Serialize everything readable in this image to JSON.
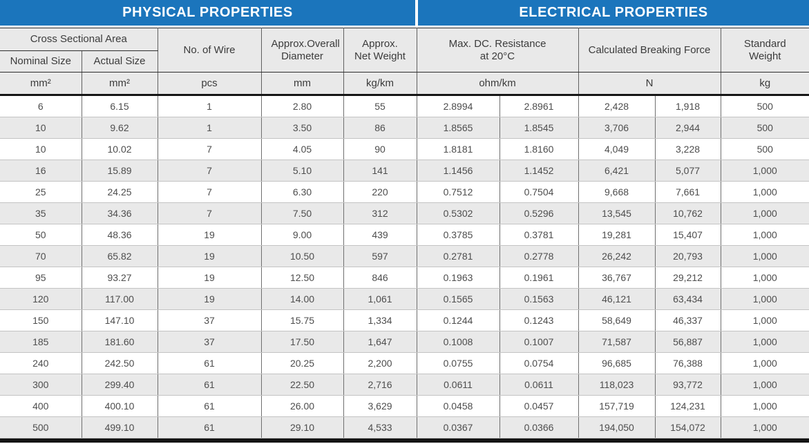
{
  "banners": {
    "physical": "PHYSICAL PROPERTIES",
    "electrical": "ELECTRICAL PROPERTIES"
  },
  "colors": {
    "banner_blue": "#1b75bc",
    "row_alt_gray": "#e9e9e9",
    "header_gray": "#e9e9e9",
    "bottom_bar": "#141414"
  },
  "header": {
    "cross_sectional_area": "Cross Sectional Area",
    "nominal_size": "Nominal Size",
    "actual_size": "Actual Size",
    "no_of_wire": "No. of Wire",
    "approx_overall_diameter": "Approx.Overall Diameter",
    "approx_net_weight": "Approx. Net Weight",
    "max_dc_resistance_line1": "Max. DC. Resistance",
    "max_dc_resistance_line2": "at 20°C",
    "calculated_breaking_force": "Calculated Breaking Force",
    "standard_weight": "Standard Weight"
  },
  "units": {
    "nominal_size": "mm²",
    "actual_size": "mm²",
    "no_of_wire": "pcs",
    "diameter": "mm",
    "net_weight": "kg/km",
    "resistance": "ohm/km",
    "breaking_force": "N",
    "standard_weight": "kg"
  },
  "rows": [
    [
      "6",
      "6.15",
      "1",
      "2.80",
      "55",
      "2.8994",
      "2.8961",
      "2,428",
      "1,918",
      "500"
    ],
    [
      "10",
      "9.62",
      "1",
      "3.50",
      "86",
      "1.8565",
      "1.8545",
      "3,706",
      "2,944",
      "500"
    ],
    [
      "10",
      "10.02",
      "7",
      "4.05",
      "90",
      "1.8181",
      "1.8160",
      "4,049",
      "3,228",
      "500"
    ],
    [
      "16",
      "15.89",
      "7",
      "5.10",
      "141",
      "1.1456",
      "1.1452",
      "6,421",
      "5,077",
      "1,000"
    ],
    [
      "25",
      "24.25",
      "7",
      "6.30",
      "220",
      "0.7512",
      "0.7504",
      "9,668",
      "7,661",
      "1,000"
    ],
    [
      "35",
      "34.36",
      "7",
      "7.50",
      "312",
      "0.5302",
      "0.5296",
      "13,545",
      "10,762",
      "1,000"
    ],
    [
      "50",
      "48.36",
      "19",
      "9.00",
      "439",
      "0.3785",
      "0.3781",
      "19,281",
      "15,407",
      "1,000"
    ],
    [
      "70",
      "65.82",
      "19",
      "10.50",
      "597",
      "0.2781",
      "0.2778",
      "26,242",
      "20,793",
      "1,000"
    ],
    [
      "95",
      "93.27",
      "19",
      "12.50",
      "846",
      "0.1963",
      "0.1961",
      "36,767",
      "29,212",
      "1,000"
    ],
    [
      "120",
      "117.00",
      "19",
      "14.00",
      "1,061",
      "0.1565",
      "0.1563",
      "46,121",
      "63,434",
      "1,000"
    ],
    [
      "150",
      "147.10",
      "37",
      "15.75",
      "1,334",
      "0.1244",
      "0.1243",
      "58,649",
      "46,337",
      "1,000"
    ],
    [
      "185",
      "181.60",
      "37",
      "17.50",
      "1,647",
      "0.1008",
      "0.1007",
      "71,587",
      "56,887",
      "1,000"
    ],
    [
      "240",
      "242.50",
      "61",
      "20.25",
      "2,200",
      "0.0755",
      "0.0754",
      "96,685",
      "76,388",
      "1,000"
    ],
    [
      "300",
      "299.40",
      "61",
      "22.50",
      "2,716",
      "0.0611",
      "0.0611",
      "118,023",
      "93,772",
      "1,000"
    ],
    [
      "400",
      "400.10",
      "61",
      "26.00",
      "3,629",
      "0.0458",
      "0.0457",
      "157,719",
      "124,231",
      "1,000"
    ],
    [
      "500",
      "499.10",
      "61",
      "29.10",
      "4,533",
      "0.0367",
      "0.0366",
      "194,050",
      "154,072",
      "1,000"
    ]
  ]
}
